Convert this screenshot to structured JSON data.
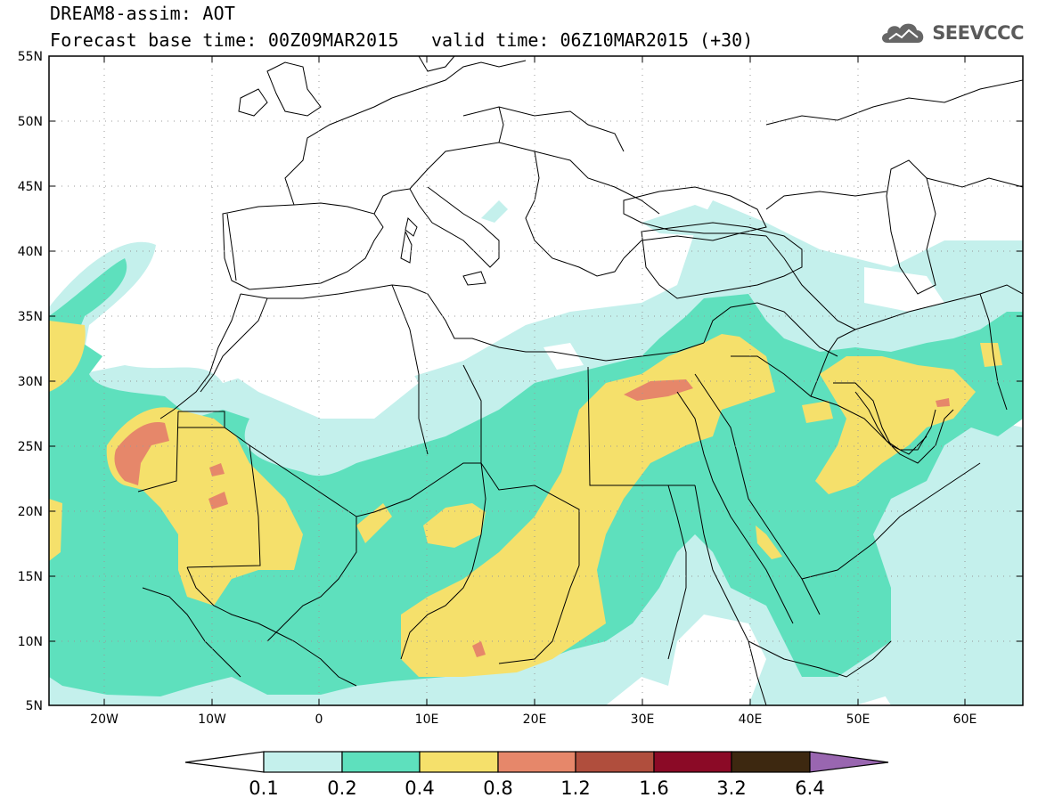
{
  "header": {
    "title": "DREAM8-assim: AOT",
    "base_time": "Forecast base time: 00Z09MAR2015",
    "valid_time": "valid time: 06Z10MAR2015 (+30)"
  },
  "logo": {
    "text": "SEEVCCC",
    "icon": "cloud-icon"
  },
  "map": {
    "lat_labels": [
      "55N",
      "50N",
      "45N",
      "40N",
      "35N",
      "30N",
      "25N",
      "20N",
      "15N",
      "10N",
      "5N"
    ],
    "lon_labels": [
      "20W",
      "10W",
      "0",
      "10E",
      "20E",
      "30E",
      "40E",
      "50E",
      "60E"
    ],
    "lon_range": [
      -25,
      65
    ],
    "lat_range": [
      5,
      55
    ]
  },
  "colorbar": {
    "labels": [
      "0.1",
      "0.2",
      "0.4",
      "0.8",
      "1.2",
      "1.6",
      "3.2",
      "6.4"
    ],
    "colors": [
      "#ffffff",
      "#c4f0ec",
      "#5ee0bd",
      "#f5e06b",
      "#e6876a",
      "#b04e3d",
      "#8b0a26",
      "#3d2810",
      "#9966b0"
    ]
  },
  "palette": {
    "ocean": "#ffffff",
    "level_1": "#c4f0ec",
    "level_2": "#5ee0bd",
    "level_3": "#f5e06b",
    "level_4": "#e6876a",
    "border": "#000000"
  }
}
